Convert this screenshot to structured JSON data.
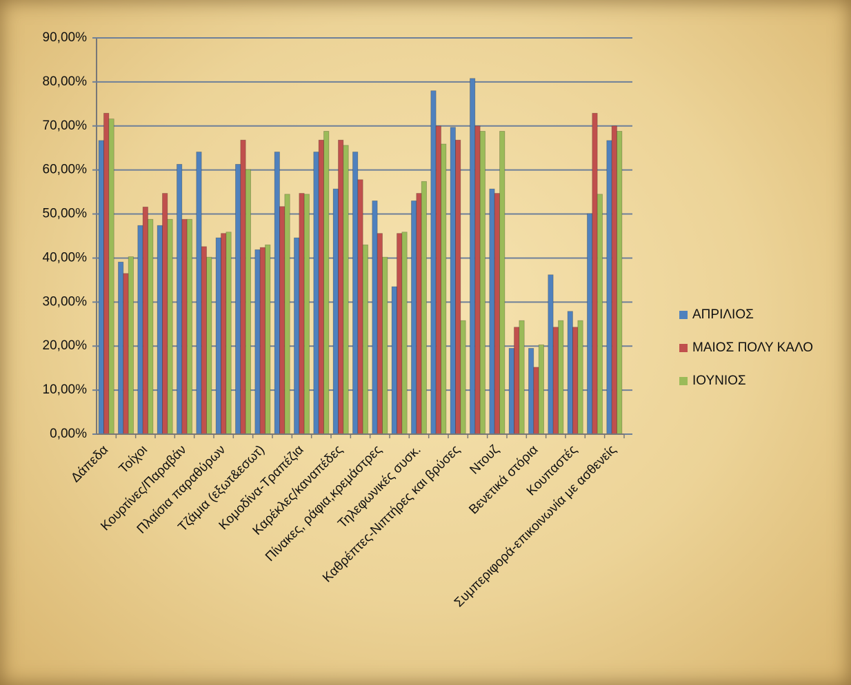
{
  "chart_data": {
    "type": "bar",
    "categories": [
      "Δάπεδα",
      null,
      "Τοίχοι",
      null,
      "Κουρτίνες/Παραβάν",
      null,
      "Πλαίσια παραθύρων",
      null,
      "Τζάμια (εξωτ&εσωτ)",
      null,
      "Κομοδίνα-Τραπέζια",
      null,
      "Καρέκλες/καναπέδες",
      null,
      "Πίνακες, ράφια,κρεμάστρες",
      null,
      "Τηλεφωνικές συσκ.",
      null,
      "Καθρέπτες-Νιπτήρες και βρύσες",
      null,
      "Ντουζ",
      null,
      "Βενετικά στόρια",
      null,
      "Κουπαστές",
      null,
      "Συμπεριφορά-επικοινωνία με ασθενείς"
    ],
    "series": [
      {
        "name": "ΑΠΡΙΛΙΟΣ",
        "color": "#4f81bd",
        "values": [
          66.7,
          39.1,
          47.4,
          47.4,
          61.3,
          64.1,
          44.6,
          61.3,
          41.9,
          64.1,
          44.6,
          64.1,
          55.7,
          64.1,
          53.0,
          33.5,
          53.0,
          78.0,
          69.7,
          80.8,
          55.7,
          19.5,
          19.5,
          36.2,
          27.9,
          50.1,
          66.7
        ]
      },
      {
        "name": "ΜΑΙΟΣ ΠΟΛΥ ΚΑΛΟ",
        "color": "#c0504d",
        "values": [
          72.9,
          36.5,
          51.6,
          54.7,
          48.8,
          42.6,
          45.6,
          66.8,
          42.4,
          51.7,
          54.7,
          66.8,
          66.8,
          57.8,
          45.6,
          45.6,
          54.7,
          70.0,
          66.8,
          70.0,
          54.7,
          24.3,
          15.2,
          24.3,
          24.3,
          72.9,
          70.0
        ]
      },
      {
        "name": "ΙΟΥΝΙΟΣ",
        "color": "#9bbb59",
        "values": [
          71.6,
          40.3,
          48.8,
          48.8,
          48.8,
          40.2,
          45.9,
          60.1,
          43.0,
          54.5,
          54.5,
          68.8,
          65.6,
          43.0,
          40.2,
          45.9,
          57.4,
          65.9,
          25.8,
          68.8,
          68.8,
          25.8,
          20.3,
          25.8,
          25.8,
          54.5,
          68.8
        ]
      }
    ],
    "ylim": [
      0,
      90
    ],
    "yticks": [
      {
        "value": 0,
        "label": "0,00%"
      },
      {
        "value": 10,
        "label": "10,00%"
      },
      {
        "value": 20,
        "label": "20,00%"
      },
      {
        "value": 30,
        "label": "30,00%"
      },
      {
        "value": 40,
        "label": "40,00%"
      },
      {
        "value": 50,
        "label": "50,00%"
      },
      {
        "value": 60,
        "label": "60,00%"
      },
      {
        "value": 70,
        "label": "70,00%"
      },
      {
        "value": 80,
        "label": "80,00%"
      },
      {
        "value": 90,
        "label": "90,00%"
      }
    ],
    "grid": true
  }
}
